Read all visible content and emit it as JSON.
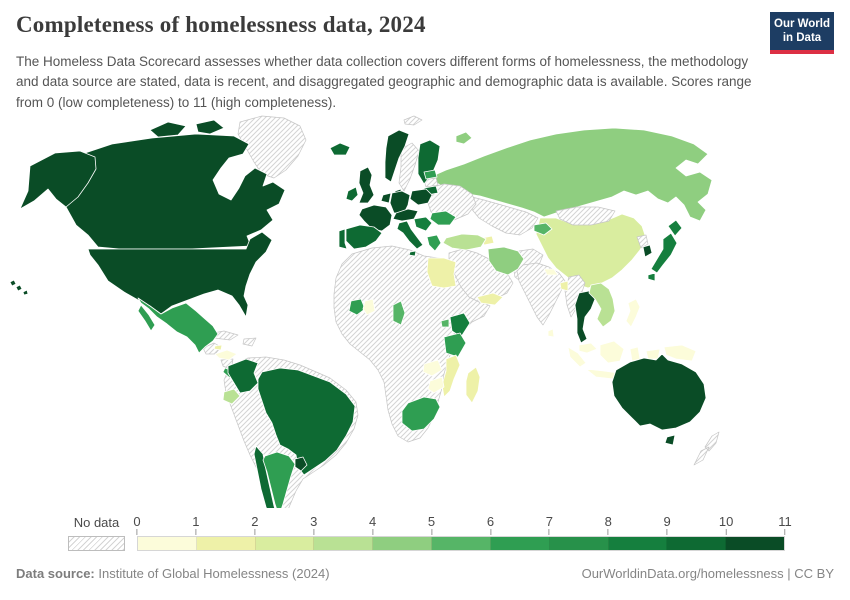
{
  "header": {
    "title": "Completeness of homelessness data, 2024",
    "subtitle": "The Homeless Data Scorecard assesses whether data collection covers different forms of homelessness, the methodology and data source are stated, data is recent, and disaggregated geographic and demographic data is available. Scores range from 0 (low completeness) to 11 (high completeness).",
    "logo": {
      "line1": "Our World",
      "line2": "in Data",
      "bg_color": "#1d3d63",
      "accent_color": "#dc2f44"
    }
  },
  "legend": {
    "no_data_label": "No data",
    "ticks": [
      "0",
      "1",
      "2",
      "3",
      "4",
      "5",
      "6",
      "7",
      "8",
      "9",
      "10",
      "11"
    ],
    "colors": [
      "#fcfcda",
      "#eef1a8",
      "#d9ed9f",
      "#b9e194",
      "#8fce80",
      "#56b567",
      "#2f9e52",
      "#27914a",
      "#157f3e",
      "#0e6a33",
      "#0a4c26"
    ],
    "no_data_border": "#bdbdbd",
    "country_border": "#ffffff",
    "no_data_country_border": "#c6c6c6"
  },
  "footer": {
    "source_label": "Data source:",
    "source_value": "Institute of Global Homelessness (2024)",
    "credit": "OurWorldinData.org/homelessness | CC BY"
  },
  "chart_data": {
    "type": "heatmap",
    "subtype": "world-choropleth",
    "title": "Completeness of homelessness data, 2024",
    "value_label": "Homeless Data Scorecard completeness score",
    "value_range": [
      0,
      11
    ],
    "legend_position": "bottom",
    "no_data_style": "hatched",
    "countries": {
      "greenland": {
        "label": "Greenland",
        "score": null
      },
      "svalbard": {
        "label": "Svalbard",
        "score": null
      },
      "canada": {
        "label": "Canada",
        "score": 11
      },
      "united-states": {
        "label": "United States",
        "score": 11
      },
      "mexico": {
        "label": "Mexico",
        "score": 7
      },
      "guatemala": {
        "label": "Guatemala",
        "score": null
      },
      "honduras": {
        "label": "Honduras",
        "score": 1
      },
      "nicaragua": {
        "label": "Nicaragua",
        "score": null
      },
      "costa-rica": {
        "label": "Costa Rica",
        "score": 7
      },
      "panama": {
        "label": "Panama",
        "score": 10
      },
      "cuba": {
        "label": "Cuba",
        "score": null
      },
      "jamaica": {
        "label": "Jamaica",
        "score": 2
      },
      "hispaniola": {
        "label": "Haiti & Dominican Republic",
        "score": null
      },
      "colombia": {
        "label": "Colombia",
        "score": 10
      },
      "ecuador": {
        "label": "Ecuador",
        "score": 4
      },
      "brazil": {
        "label": "Brazil",
        "score": 10
      },
      "chile": {
        "label": "Chile",
        "score": 10
      },
      "argentina": {
        "label": "Argentina",
        "score": 7
      },
      "uruguay": {
        "label": "Uruguay",
        "score": 11
      },
      "south-america-other": {
        "label": "Venezuela, Peru, Bolivia & Paraguay",
        "score": null
      },
      "falkland-islands": {
        "label": "Falkland Islands",
        "score": null
      },
      "iceland": {
        "label": "Iceland",
        "score": 10
      },
      "norway": {
        "label": "Norway",
        "score": 11
      },
      "sweden": {
        "label": "Sweden",
        "score": null
      },
      "finland": {
        "label": "Finland",
        "score": 10
      },
      "denmark": {
        "label": "Denmark",
        "score": 11
      },
      "estonia": {
        "label": "Estonia",
        "score": 7
      },
      "latvia": {
        "label": "Latvia",
        "score": null
      },
      "lithuania": {
        "label": "Lithuania",
        "score": 10
      },
      "united-kingdom": {
        "label": "United Kingdom",
        "score": 11
      },
      "ireland": {
        "label": "Ireland",
        "score": 10
      },
      "france": {
        "label": "France",
        "score": 11
      },
      "spain": {
        "label": "Spain",
        "score": 10
      },
      "portugal": {
        "label": "Portugal",
        "score": 10
      },
      "germany": {
        "label": "Germany",
        "score": 11
      },
      "low-countries": {
        "label": "Belgium & Netherlands",
        "score": 11
      },
      "poland": {
        "label": "Poland",
        "score": 11
      },
      "central-europe": {
        "label": "Switzerland, Austria & Czechia",
        "score": 11
      },
      "italy": {
        "label": "Italy",
        "score": 10
      },
      "west-balkans": {
        "label": "Croatia & Western Balkans",
        "score": 9
      },
      "greece": {
        "label": "Greece",
        "score": 7
      },
      "romania": {
        "label": "Romania",
        "score": 7
      },
      "eastern-europe": {
        "label": "Ukraine, Belarus & Moldova",
        "score": null
      },
      "armenia": {
        "label": "Armenia & Caucasus",
        "score": 2
      },
      "turkey": {
        "label": "Turkey",
        "score": 4
      },
      "russia": {
        "label": "Russia",
        "score": 5
      },
      "kazakhstan": {
        "label": "Kazakhstan & Central Asia",
        "score": null
      },
      "kyrgyzstan": {
        "label": "Kyrgyzstan",
        "score": 6
      },
      "mongolia": {
        "label": "Mongolia",
        "score": null
      },
      "china": {
        "label": "China",
        "score": 3
      },
      "india": {
        "label": "India",
        "score": null
      },
      "nepal": {
        "label": "Nepal",
        "score": 1
      },
      "bangladesh": {
        "label": "Bangladesh",
        "score": 2
      },
      "sri-lanka": {
        "label": "Sri Lanka",
        "score": 1
      },
      "myanmar": {
        "label": "Myanmar",
        "score": null
      },
      "thailand": {
        "label": "Thailand",
        "score": 11
      },
      "vietnam": {
        "label": "Vietnam, Laos & Cambodia",
        "score": 4
      },
      "malaysia": {
        "label": "Malaysia",
        "score": 1
      },
      "indonesia": {
        "label": "Indonesia",
        "score": 1
      },
      "philippines": {
        "label": "Philippines",
        "score": 1
      },
      "papua-new-guinea": {
        "label": "Papua New Guinea",
        "score": 1
      },
      "japan": {
        "label": "Japan",
        "score": 9
      },
      "south-korea": {
        "label": "South Korea",
        "score": 11
      },
      "north-korea": {
        "label": "North Korea",
        "score": null
      },
      "middle-east": {
        "label": "Saudi Arabia & Middle East",
        "score": null
      },
      "iran": {
        "label": "Iran",
        "score": 5
      },
      "israel": {
        "label": "Israel",
        "score": 2
      },
      "yemen": {
        "label": "Yemen",
        "score": 2
      },
      "afghanistan-pakistan": {
        "label": "Afghanistan & Pakistan",
        "score": null
      },
      "egypt": {
        "label": "Egypt",
        "score": 2
      },
      "africa-other": {
        "label": "Rest of Africa",
        "score": null
      },
      "ivory-coast": {
        "label": "Cote d'Ivoire",
        "score": 7
      },
      "ghana": {
        "label": "Ghana",
        "score": 1
      },
      "cameroon": {
        "label": "Cameroon",
        "score": 6
      },
      "uganda": {
        "label": "Uganda",
        "score": 6
      },
      "kenya": {
        "label": "Kenya",
        "score": 9
      },
      "tanzania": {
        "label": "Tanzania",
        "score": 7
      },
      "mozambique": {
        "label": "Mozambique",
        "score": 2
      },
      "zambia": {
        "label": "Zambia",
        "score": 1
      },
      "zimbabwe": {
        "label": "Zimbabwe",
        "score": 1
      },
      "south-africa": {
        "label": "South Africa",
        "score": 7
      },
      "madagascar": {
        "label": "Madagascar",
        "score": 2
      },
      "australia": {
        "label": "Australia",
        "score": 11
      },
      "new-zealand": {
        "label": "New Zealand",
        "score": null
      }
    }
  }
}
